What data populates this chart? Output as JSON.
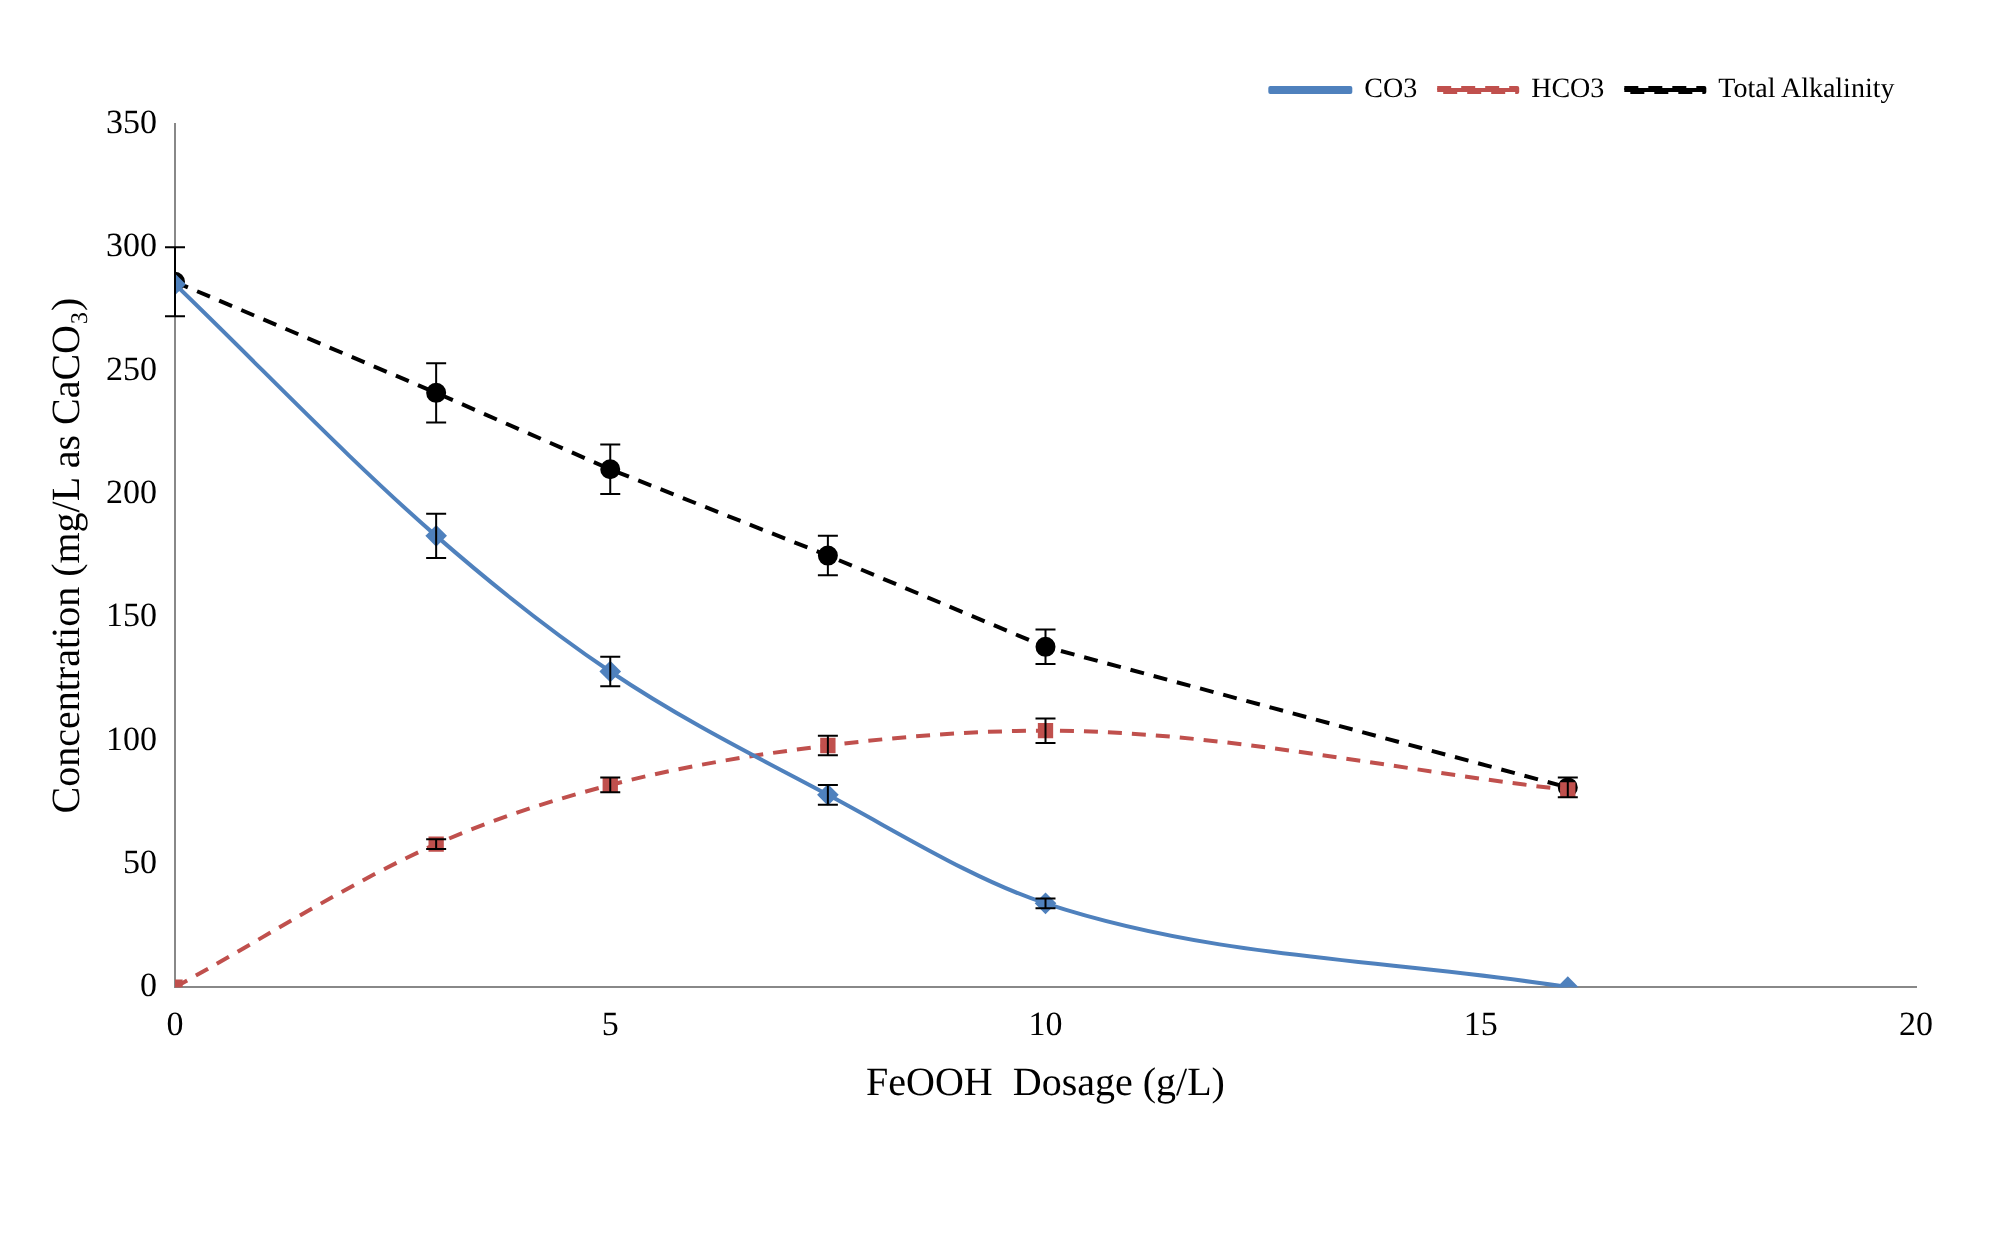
{
  "chart_data": {
    "type": "line",
    "xlabel": "FeOOH  Dosage (g/L)",
    "ylabel": "Concentration (mg/L as CaCO₃)",
    "x": [
      0,
      3,
      5,
      7.5,
      10,
      16
    ],
    "xlim": [
      0,
      20
    ],
    "xticks": [
      0,
      5,
      10,
      15,
      20
    ],
    "ylim": [
      0,
      350
    ],
    "yticks": [
      0,
      50,
      100,
      150,
      200,
      250,
      300,
      350
    ],
    "grid": false,
    "legend": "top right",
    "series": [
      {
        "name": "CO3",
        "color": "#4f81bd",
        "marker": "diamond",
        "line_style": "solid",
        "values": [
          285,
          183,
          128,
          78,
          34,
          0
        ],
        "errors": [
          null,
          9,
          6,
          4,
          2,
          null
        ]
      },
      {
        "name": "HCO3",
        "color": "#c0504d",
        "marker": "square",
        "line_style": "dashed",
        "values": [
          0,
          58,
          82,
          98,
          104,
          80
        ],
        "errors": [
          null,
          2,
          3,
          4,
          5,
          null
        ]
      },
      {
        "name": "Total Alkalinity",
        "color": "#000000",
        "marker": "circle",
        "line_style": "dashed",
        "values": [
          286,
          241,
          210,
          175,
          138,
          81
        ],
        "errors": [
          14,
          12,
          10,
          8,
          7,
          4
        ]
      }
    ]
  }
}
